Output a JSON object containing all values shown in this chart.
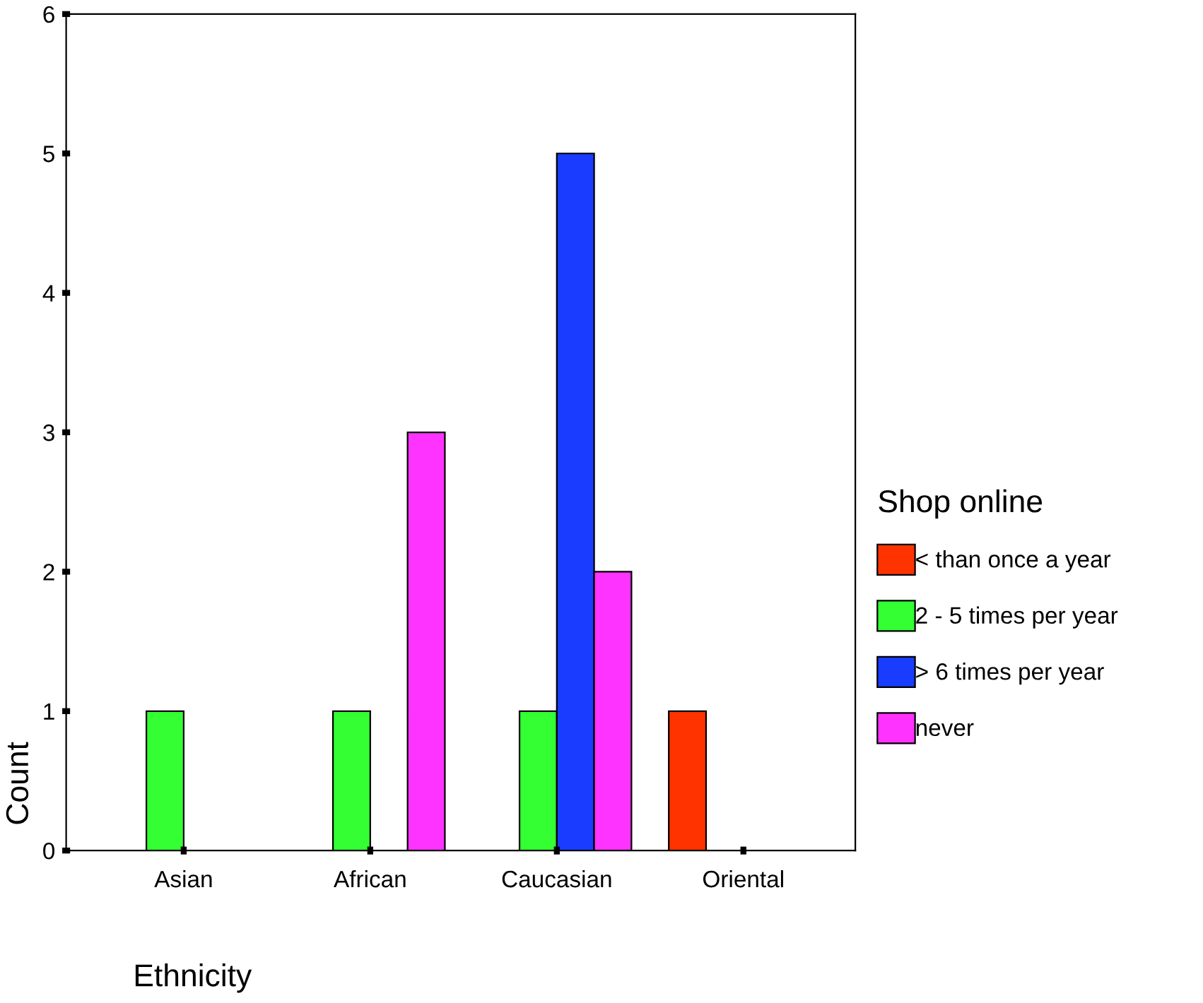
{
  "chart_data": {
    "type": "bar",
    "categories": [
      "Asian",
      "African",
      "Caucasian",
      "Oriental"
    ],
    "xlabel": "Ethnicity",
    "ylabel": "Count",
    "legend_title": "Shop online",
    "series": [
      {
        "name": "< than once a year",
        "color": "#ff3300",
        "values": [
          null,
          null,
          null,
          1
        ]
      },
      {
        "name": "2 - 5 times per year",
        "color": "#33ff33",
        "values": [
          1,
          1,
          1,
          null
        ]
      },
      {
        "name": "> 6 times per year",
        "color": "#1a3cff",
        "values": [
          null,
          null,
          5,
          null
        ]
      },
      {
        "name": "never",
        "color": "#ff33ff",
        "values": [
          null,
          3,
          2,
          null
        ]
      }
    ],
    "ylim": [
      0,
      6
    ],
    "yticks": [
      0,
      1,
      2,
      3,
      4,
      5,
      6
    ],
    "grid": false,
    "legend": "right"
  }
}
